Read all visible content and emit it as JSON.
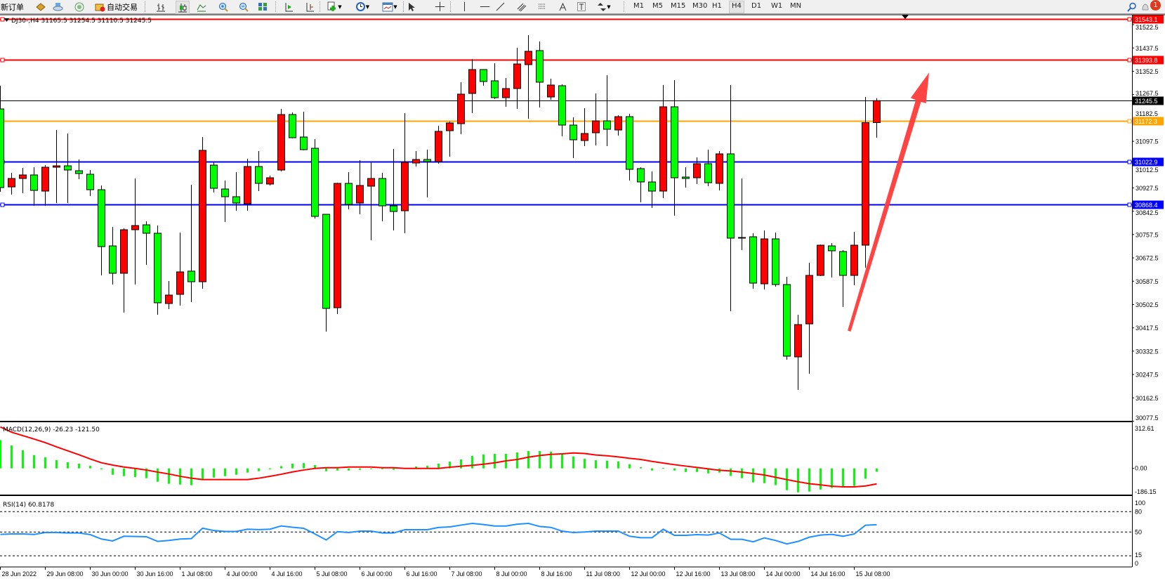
{
  "toolbar": {
    "new_order": "新订单",
    "auto_trading": "自动交易",
    "timeframes": [
      "M1",
      "M5",
      "M15",
      "M30",
      "H1",
      "H4",
      "D1",
      "W1",
      "MN"
    ],
    "active_timeframe": "H4",
    "notification_count": "1"
  },
  "chart_header": {
    "title": "DJ30-,H4  31165.5 31254.5 31110.5 31245.5"
  },
  "colors": {
    "bull_candle": "#ff0000",
    "bear_candle": "#00ff00",
    "macd_histogram": "#00ff00",
    "macd_signal": "#ff0000",
    "rsi_line": "#1e90ff",
    "arrow": "#ff3b3b"
  },
  "chart_data": [
    {
      "type": "candlestick",
      "symbol": "DJ30-",
      "timeframe": "H4",
      "ohlc_order": [
        "open",
        "high",
        "low",
        "close"
      ],
      "candles": [
        [
          31215.4,
          31299.9,
          30913.3,
          30928.7
        ],
        [
          30931.2,
          30982.4,
          30903.1,
          30961.9
        ],
        [
          30961.9,
          31000.4,
          30908.2,
          30974.8
        ],
        [
          30974.8,
          31002.9,
          30862.1,
          30918.4
        ],
        [
          30915.9,
          31010.6,
          30862.1,
          31002.9
        ],
        [
          31002.9,
          31138.6,
          30872.4,
          31008.0
        ],
        [
          31008.0,
          31125.8,
          30872.4,
          30992.7
        ],
        [
          30990.1,
          31031.1,
          30959.4,
          30979.9
        ],
        [
          30977.3,
          30992.7,
          30898.0,
          30921.0
        ],
        [
          30921.0,
          30936.4,
          30608.7,
          30713.6
        ],
        [
          30716.2,
          30785.3,
          30575.4,
          30616.4
        ],
        [
          30616.4,
          30780.2,
          30473.0,
          30775.1
        ],
        [
          30775.1,
          30961.9,
          30575.4,
          30790.4
        ],
        [
          30793.0,
          30805.8,
          30647.1,
          30762.3
        ],
        [
          30762.3,
          30790.4,
          30465.3,
          30508.8
        ],
        [
          30506.3,
          30588.2,
          30485.8,
          30537.0
        ],
        [
          30539.6,
          30764.8,
          30498.6,
          30621.5
        ],
        [
          30624.2,
          30939.0,
          30511.4,
          30585.6
        ],
        [
          30585.6,
          31113.0,
          30560.0,
          31064.4
        ],
        [
          31010.6,
          31023.4,
          30910.8,
          30926.1
        ],
        [
          30923.6,
          30954.3,
          30803.2,
          30895.4
        ],
        [
          30895.4,
          30985.0,
          30844.2,
          30872.4
        ],
        [
          30869.8,
          31033.6,
          30844.2,
          31005.5
        ],
        [
          31005.5,
          31061.8,
          30915.9,
          30944.0
        ],
        [
          30941.5,
          30972.2,
          30936.4,
          30964.5
        ],
        [
          30992.7,
          31215.4,
          30987.6,
          31194.9
        ],
        [
          31194.9,
          31202.6,
          31107.9,
          31110.4
        ],
        [
          31113.0,
          31205.2,
          31064.4,
          31066.9
        ],
        [
          31072.0,
          31105.3,
          30816.0,
          30823.7
        ],
        [
          30831.4,
          30831.4,
          30403.9,
          30488.4
        ],
        [
          30490.9,
          30946.6,
          30467.9,
          30944.0
        ],
        [
          30944.0,
          30985.0,
          30849.3,
          30867.2
        ],
        [
          30872.4,
          31028.5,
          30831.4,
          30936.4
        ],
        [
          30933.8,
          31023.4,
          30736.7,
          30961.9
        ],
        [
          30961.9,
          30982.4,
          30805.8,
          30862.1
        ],
        [
          30862.1,
          31069.5,
          30772.5,
          30841.6
        ],
        [
          30844.2,
          31200.0,
          30762.3,
          31020.8
        ],
        [
          31018.3,
          31061.8,
          31005.5,
          31031.1
        ],
        [
          31031.1,
          31066.9,
          30892.8,
          31023.4
        ],
        [
          31023.4,
          31154.0,
          31015.7,
          31133.5
        ],
        [
          31136.0,
          31169.3,
          31041.3,
          31164.2
        ],
        [
          31161.6,
          31312.7,
          31123.2,
          31269.2
        ],
        [
          31271.7,
          31397.2,
          31200.0,
          31358.8
        ],
        [
          31358.8,
          31358.8,
          31299.9,
          31315.2
        ],
        [
          31317.8,
          31381.8,
          31251.2,
          31256.4
        ],
        [
          31256.4,
          31328.0,
          31223.1,
          31289.6
        ],
        [
          31289.6,
          31438.1,
          31215.4,
          31379.2
        ],
        [
          31376.7,
          31484.2,
          31179.6,
          31425.3
        ],
        [
          31427.9,
          31461.2,
          31220.5,
          31312.7
        ],
        [
          31258.9,
          31325.5,
          31248.7,
          31302.4
        ],
        [
          31299.9,
          31305.0,
          31115.6,
          31156.5
        ],
        [
          31156.5,
          31184.7,
          31036.2,
          31102.8
        ],
        [
          31100.2,
          31218.0,
          31079.8,
          31125.8
        ],
        [
          31128.4,
          31271.7,
          31082.3,
          31171.9
        ],
        [
          31171.9,
          31338.3,
          31079.8,
          31141.2
        ],
        [
          31138.6,
          31192.4,
          31118.1,
          31187.2
        ],
        [
          31187.2,
          31197.5,
          30954.3,
          30995.2
        ],
        [
          30997.8,
          31002.9,
          30874.9,
          30949.2
        ],
        [
          30949.2,
          30987.6,
          30854.4,
          30915.9
        ],
        [
          30915.9,
          31302.4,
          30890.3,
          31223.1
        ],
        [
          31223.1,
          31320.4,
          30826.3,
          30964.5
        ],
        [
          30967.1,
          31002.9,
          30928.7,
          30961.9
        ],
        [
          30964.5,
          31038.8,
          30941.5,
          31015.7
        ],
        [
          31015.7,
          31066.9,
          30933.8,
          30946.6
        ],
        [
          30944.0,
          31061.8,
          30918.4,
          31051.6
        ],
        [
          31051.6,
          31302.4,
          30478.1,
          30744.4
        ],
        [
          30746.9,
          30961.9,
          30700.8,
          30744.4
        ],
        [
          30749.5,
          30762.3,
          30560.0,
          30580.5
        ],
        [
          30578.0,
          30772.5,
          30557.5,
          30741.8
        ],
        [
          30741.8,
          30764.8,
          30567.7,
          30575.4
        ],
        [
          30575.4,
          30603.6,
          30301.5,
          30314.3
        ],
        [
          30311.7,
          30465.3,
          30191.4,
          30429.5
        ],
        [
          30432.0,
          30654.8,
          30250.3,
          30608.7
        ],
        [
          30608.7,
          30721.4,
          30606.1,
          30718.8
        ],
        [
          30716.2,
          30726.4,
          30601.0,
          30698.3
        ],
        [
          30695.7,
          30700.8,
          30493.5,
          30608.7
        ],
        [
          30608.7,
          30767.4,
          30572.8,
          30718.8
        ],
        [
          30718.8,
          31258.9,
          30636.8,
          31165.5
        ],
        [
          31165.5,
          31254.5,
          31110.5,
          31245.5
        ]
      ],
      "y_range": [
        30077.5,
        31543.1
      ],
      "y_ticks": [
        "31522.5",
        "31437.5",
        "31352.5",
        "31267.5",
        "31182.5",
        "31097.5",
        "31012.5",
        "30927.5",
        "30842.5",
        "30757.5",
        "30672.5",
        "30587.5",
        "30502.5",
        "30417.5",
        "30332.5",
        "30247.5",
        "30162.5",
        "30077.5"
      ],
      "x_tick_labels": [
        {
          "index": 0,
          "label": "28 Jun 2022"
        },
        {
          "index": 4,
          "label": "29 Jun 08:00"
        },
        {
          "index": 8,
          "label": "30 Jun 00:00"
        },
        {
          "index": 12,
          "label": "30 Jun 16:00"
        },
        {
          "index": 16,
          "label": "1 Jul 08:00"
        },
        {
          "index": 20,
          "label": "4 Jul 00:00"
        },
        {
          "index": 24,
          "label": "4 Jul 16:00"
        },
        {
          "index": 28,
          "label": "5 Jul 08:00"
        },
        {
          "index": 32,
          "label": "6 Jul 00:00"
        },
        {
          "index": 36,
          "label": "6 Jul 16:00"
        },
        {
          "index": 40,
          "label": "7 Jul 08:00"
        },
        {
          "index": 44,
          "label": "8 Jul 00:00"
        },
        {
          "index": 48,
          "label": "8 Jul 16:00"
        },
        {
          "index": 52,
          "label": "11 Jul 08:00"
        },
        {
          "index": 56,
          "label": "12 Jul 00:00"
        },
        {
          "index": 60,
          "label": "12 Jul 16:00"
        },
        {
          "index": 64,
          "label": "13 Jul 08:00"
        },
        {
          "index": 68,
          "label": "14 Jul 00:00"
        },
        {
          "index": 72,
          "label": "14 Jul 16:00"
        },
        {
          "index": 76,
          "label": "15 Jul 08:00"
        }
      ],
      "horizontal_lines": [
        {
          "price": "31543.1",
          "color": "#ff0000",
          "label_text_color": "#ffffff"
        },
        {
          "price": "31393.8",
          "color": "#ff0000",
          "label_text_color": "#ffffff"
        },
        {
          "price": "31245.5",
          "color": "#000000",
          "label_text_color": "#ffffff",
          "current_price": true
        },
        {
          "price": "31172.3",
          "color": "#ffa500",
          "label_text_color": "#ffffff"
        },
        {
          "price": "31022.9",
          "color": "#0000ff",
          "label_text_color": "#ffffff"
        },
        {
          "price": "30868.4",
          "color": "#0000ff",
          "label_text_color": "#ffffff"
        }
      ],
      "annotation": "upward red arrow"
    },
    {
      "type": "bar+line",
      "title": "MACD(12,26,9) -26.23 -121.50",
      "y_ticks": [
        "312.61",
        "0.00",
        "-186.15"
      ],
      "y_range": [
        -186.15,
        312.61
      ],
      "histogram": [
        222,
        180,
        142,
        104,
        87,
        65,
        48,
        37,
        20,
        -8,
        -50,
        -61,
        -68,
        -77,
        -105,
        -121,
        -127,
        -132,
        -83,
        -72,
        -61,
        -50,
        -33,
        -22,
        -8,
        18,
        37,
        42,
        26,
        -22,
        -17,
        -17,
        -11,
        -6,
        -6,
        -11,
        2,
        15,
        20,
        37,
        53,
        70,
        98,
        109,
        114,
        114,
        125,
        136,
        136,
        131,
        109,
        94,
        75,
        64,
        61,
        55,
        33,
        9,
        -17,
        4,
        -17,
        -28,
        -28,
        -39,
        -33,
        -59,
        -77,
        -110,
        -116,
        -131,
        -171,
        -188,
        -182,
        -166,
        -153,
        -142,
        -138,
        -81,
        -26.23
      ],
      "signal": [
        325,
        284,
        257,
        230,
        202,
        169,
        138,
        107,
        74,
        44,
        26,
        11,
        0,
        -13,
        -29,
        -44,
        -62,
        -77,
        -88,
        -88,
        -88,
        -88,
        -88,
        -77,
        -62,
        -46,
        -28,
        -13,
        0,
        5,
        5,
        11,
        11,
        11,
        5,
        5,
        0,
        0,
        0,
        0,
        9,
        17,
        24,
        33,
        44,
        59,
        70,
        88,
        101,
        110,
        114,
        121,
        117,
        105,
        99,
        90,
        79,
        70,
        55,
        42,
        29,
        18,
        7,
        -4,
        -15,
        -20,
        -29,
        -40,
        -52,
        -70,
        -88,
        -105,
        -120,
        -129,
        -140,
        -145,
        -145,
        -138,
        -121.5
      ]
    },
    {
      "type": "line",
      "title": "RSI(14) 60.8178",
      "y_ticks": [
        "100",
        "80",
        "50",
        "15",
        "0"
      ],
      "levels": [
        80,
        50,
        15
      ],
      "y_range": [
        0,
        100
      ],
      "values": [
        46.5,
        47.2,
        47.2,
        46.5,
        49.3,
        49.3,
        48.6,
        48.6,
        46.2,
        39.7,
        36.9,
        43.8,
        43.5,
        43.1,
        36.2,
        37.6,
        39.7,
        40.4,
        55.6,
        52.2,
        50.8,
        50.8,
        54.2,
        53.5,
        54.2,
        59.0,
        57.0,
        55.5,
        47.2,
        38.3,
        50.6,
        49.3,
        51.3,
        51.3,
        48.6,
        48.6,
        53.4,
        53.4,
        53.4,
        56.8,
        57.5,
        60.2,
        62.7,
        61.0,
        58.9,
        58.9,
        61.6,
        62.7,
        58.2,
        56.8,
        51.3,
        49.3,
        50.0,
        51.3,
        51.3,
        51.3,
        43.8,
        41.7,
        41.7,
        54.1,
        45.1,
        45.1,
        46.2,
        45.5,
        48.6,
        39.3,
        39.3,
        35.6,
        41.4,
        37.6,
        32.5,
        36.2,
        42.4,
        45.5,
        46.5,
        43.8,
        47.2,
        60.0,
        60.8178
      ]
    }
  ]
}
